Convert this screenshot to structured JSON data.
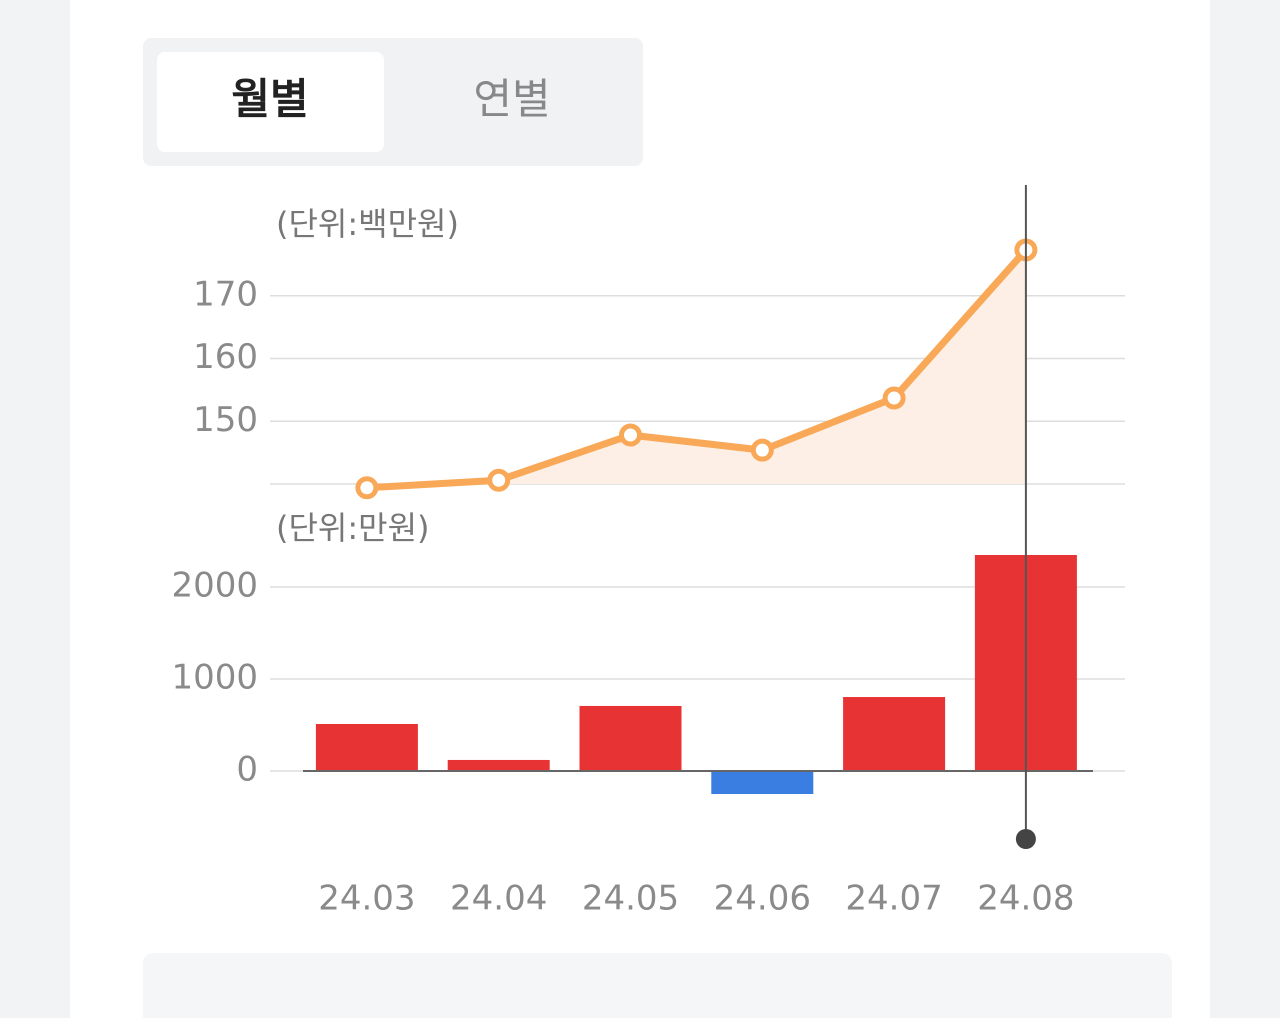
{
  "tabs": [
    "월별",
    "연별"
  ],
  "chart_data": [
    {
      "type": "line",
      "unit_label": "(단위:백만원)",
      "values": [
        139.4,
        140.6,
        147.8,
        145.4,
        153.7,
        177.3
      ],
      "color": "#f8a857",
      "area_color": "#fdefe5",
      "ylim": [
        140,
        180
      ],
      "yticks": [
        150,
        160,
        170
      ],
      "grid": true
    },
    {
      "type": "bar",
      "unit_label": "(단위:만원)",
      "categories": [
        "24.03",
        "24.04",
        "24.05",
        "24.06",
        "24.07",
        "24.08"
      ],
      "values": [
        511,
        120,
        707,
        -250,
        804,
        2348
      ],
      "positive_color": "#e73333",
      "negative_color": "#3a7ee2",
      "ylim": [
        -500,
        2500
      ],
      "yticks": [
        0,
        1000,
        2000
      ],
      "grid": true
    }
  ]
}
